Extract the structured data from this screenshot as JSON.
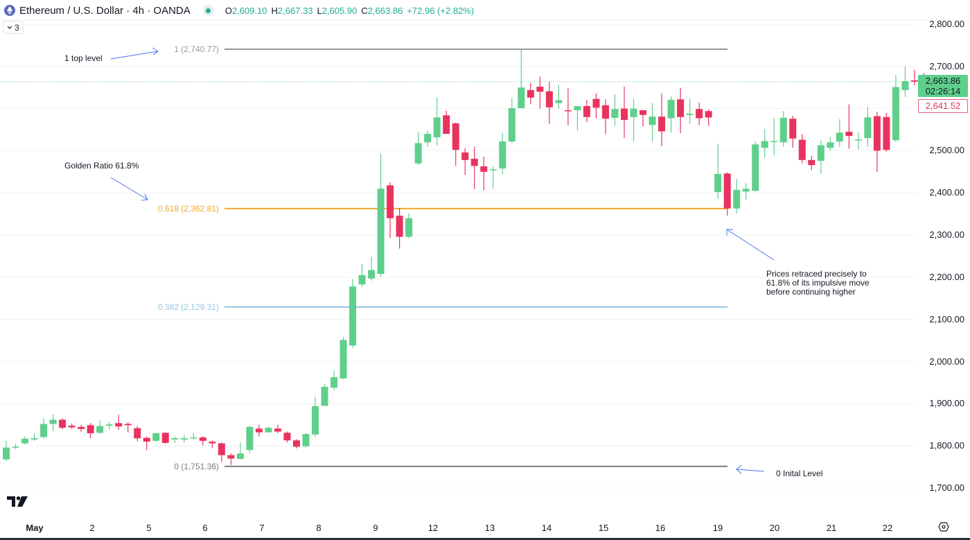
{
  "header": {
    "symbol_title": "Ethereum / U.S. Dollar · 4h · OANDA",
    "symbol_icon": "ethereum-icon",
    "ohlc": {
      "open_label": "O",
      "open": "2,609.10",
      "high_label": "H",
      "high": "2,667.33",
      "low_label": "L",
      "low": "2,605.90",
      "close_label": "C",
      "close": "2,663.86",
      "change": "+72.96 (+2.82%)"
    },
    "indicators_toggle": {
      "icon": "chevron-down-icon",
      "count": "3"
    }
  },
  "price_axis": {
    "labels": [
      "2,800.00",
      "2,700.00",
      "2,600.00",
      "2,500.00",
      "2,400.00",
      "2,300.00",
      "2,200.00",
      "2,100.00",
      "2,000.00",
      "1,900.00",
      "1,800.00",
      "1,700.00"
    ],
    "last_price": "2,663.86",
    "countdown": "02:26:14",
    "prev_close": "2,641.52"
  },
  "time_axis": {
    "labels": [
      "May",
      "2",
      "5",
      "6",
      "7",
      "8",
      "9",
      "12",
      "13",
      "14",
      "15",
      "16",
      "19",
      "20",
      "21",
      "22"
    ]
  },
  "fibonacci": [
    {
      "label": "1 (2,740.77)",
      "level": 1,
      "price": 2740.77,
      "color": "#9598a1"
    },
    {
      "label": "0.618 (2,362.81)",
      "level": 0.618,
      "price": 2362.81,
      "color": "#f0a92e"
    },
    {
      "label": "0.382 (2,129.31)",
      "level": 0.382,
      "price": 2129.31,
      "color": "#93c5e0"
    },
    {
      "label": "0 (1,751.36)",
      "level": 0,
      "price": 1751.36,
      "color": "#787b86"
    }
  ],
  "annotations": {
    "top_level": "1 top level",
    "golden_ratio": "Golden Ratio 61.8%",
    "retrace_note": [
      "Prices retraced precisely to",
      "61.8% of its impulsive move",
      "before continuing higher"
    ],
    "initial_level": "0 Inital Level"
  },
  "colors": {
    "up": "#5fcf8c",
    "down": "#e8335e",
    "annotation_arrow": "#4a72e8",
    "grid": "#f0f1f3"
  },
  "chart_data": {
    "type": "candlestick",
    "title": "Ethereum / U.S. Dollar · 4h · OANDA",
    "xlabel": "",
    "ylabel": "",
    "ylim": [
      1650,
      2830
    ],
    "grid": true,
    "x_ticks": [
      "May",
      "2",
      "5",
      "6",
      "7",
      "8",
      "9",
      "12",
      "13",
      "14",
      "15",
      "16",
      "19",
      "20",
      "21",
      "22"
    ],
    "y_ticks": [
      1700,
      1800,
      1900,
      2000,
      2100,
      2200,
      2300,
      2400,
      2500,
      2600,
      2700,
      2800
    ],
    "last_price": 2663.86,
    "fib_levels": [
      {
        "level": 1,
        "price": 2740.77
      },
      {
        "level": 0.618,
        "price": 2362.81
      },
      {
        "level": 0.382,
        "price": 2129.31
      },
      {
        "level": 0,
        "price": 1751.36
      }
    ],
    "candles": [
      [
        1768,
        1796,
        1764,
        1812
      ],
      [
        1796,
        1798,
        1792,
        1805
      ],
      [
        1806,
        1817,
        1803,
        1822
      ],
      [
        1815,
        1818,
        1812,
        1830
      ],
      [
        1821,
        1852,
        1818,
        1865
      ],
      [
        1852,
        1862,
        1835,
        1875
      ],
      [
        1862,
        1843,
        1840,
        1865
      ],
      [
        1848,
        1844,
        1840,
        1853
      ],
      [
        1845,
        1840,
        1833,
        1850
      ],
      [
        1849,
        1830,
        1818,
        1854
      ],
      [
        1831,
        1847,
        1829,
        1860
      ],
      [
        1848,
        1851,
        1839,
        1857
      ],
      [
        1854,
        1846,
        1838,
        1874
      ],
      [
        1852,
        1849,
        1832,
        1856
      ],
      [
        1842,
        1818,
        1811,
        1847
      ],
      [
        1819,
        1810,
        1790,
        1822
      ],
      [
        1812,
        1830,
        1810,
        1831
      ],
      [
        1831,
        1807,
        1805,
        1832
      ],
      [
        1815,
        1818,
        1807,
        1822
      ],
      [
        1815,
        1818,
        1808,
        1826
      ],
      [
        1819,
        1820,
        1815,
        1831
      ],
      [
        1820,
        1812,
        1801,
        1823
      ],
      [
        1810,
        1806,
        1795,
        1813
      ],
      [
        1806,
        1778,
        1762,
        1808
      ],
      [
        1778,
        1770,
        1755,
        1782
      ],
      [
        1769,
        1782,
        1768,
        1808
      ],
      [
        1790,
        1845,
        1783,
        1848
      ],
      [
        1841,
        1832,
        1822,
        1850
      ],
      [
        1832,
        1843,
        1832,
        1846
      ],
      [
        1841,
        1834,
        1830,
        1850
      ],
      [
        1831,
        1813,
        1808,
        1834
      ],
      [
        1813,
        1798,
        1794,
        1816
      ],
      [
        1799,
        1828,
        1796,
        1830
      ],
      [
        1827,
        1894,
        1822,
        1916
      ],
      [
        1895,
        1940,
        1895,
        1947
      ],
      [
        1938,
        1963,
        1932,
        1978
      ],
      [
        1960,
        2051,
        1958,
        2058
      ],
      [
        2038,
        2178,
        2032,
        2196
      ],
      [
        2183,
        2205,
        2177,
        2231
      ],
      [
        2197,
        2217,
        2192,
        2248
      ],
      [
        2208,
        2410,
        2201,
        2493
      ],
      [
        2418,
        2340,
        2293,
        2425
      ],
      [
        2346,
        2296,
        2268,
        2364
      ],
      [
        2296,
        2340,
        2293,
        2352
      ],
      [
        2470,
        2518,
        2466,
        2545
      ],
      [
        2520,
        2540,
        2510,
        2548
      ],
      [
        2532,
        2579,
        2513,
        2627
      ],
      [
        2584,
        2540,
        2549,
        2595
      ],
      [
        2565,
        2502,
        2464,
        2567
      ],
      [
        2496,
        2478,
        2443,
        2506
      ],
      [
        2481,
        2464,
        2409,
        2510
      ],
      [
        2463,
        2450,
        2406,
        2486
      ],
      [
        2454,
        2456,
        2410,
        2462
      ],
      [
        2458,
        2522,
        2444,
        2543
      ],
      [
        2522,
        2601,
        2518,
        2626
      ],
      [
        2601,
        2650,
        2605,
        2742
      ],
      [
        2644,
        2626,
        2610,
        2661
      ],
      [
        2652,
        2640,
        2600,
        2676
      ],
      [
        2641,
        2603,
        2564,
        2664
      ],
      [
        2613,
        2620,
        2600,
        2656
      ],
      [
        2596,
        2595,
        2560,
        2648
      ],
      [
        2596,
        2606,
        2548,
        2600
      ],
      [
        2606,
        2580,
        2568,
        2620
      ],
      [
        2623,
        2602,
        2577,
        2636
      ],
      [
        2608,
        2576,
        2540,
        2622
      ],
      [
        2578,
        2599,
        2559,
        2634
      ],
      [
        2600,
        2573,
        2530,
        2652
      ],
      [
        2580,
        2600,
        2521,
        2624
      ],
      [
        2596,
        2585,
        2558,
        2596
      ],
      [
        2561,
        2581,
        2521,
        2613
      ],
      [
        2581,
        2546,
        2511,
        2636
      ],
      [
        2577,
        2621,
        2543,
        2629
      ],
      [
        2622,
        2580,
        2542,
        2649
      ],
      [
        2585,
        2588,
        2564,
        2623
      ],
      [
        2599,
        2577,
        2561,
        2614
      ],
      [
        2594,
        2579,
        2559,
        2598
      ],
      [
        2402,
        2445,
        2386,
        2517
      ],
      [
        2446,
        2363,
        2346,
        2449
      ],
      [
        2363,
        2407,
        2352,
        2433
      ],
      [
        2403,
        2410,
        2384,
        2423
      ],
      [
        2405,
        2515,
        2403,
        2522
      ],
      [
        2507,
        2523,
        2483,
        2552
      ],
      [
        2523,
        2523,
        2489,
        2577
      ],
      [
        2520,
        2578,
        2510,
        2594
      ],
      [
        2576,
        2529,
        2507,
        2583
      ],
      [
        2526,
        2478,
        2470,
        2539
      ],
      [
        2478,
        2466,
        2454,
        2488
      ],
      [
        2476,
        2513,
        2445,
        2525
      ],
      [
        2507,
        2520,
        2500,
        2533
      ],
      [
        2522,
        2543,
        2510,
        2575
      ],
      [
        2545,
        2535,
        2505,
        2610
      ],
      [
        2527,
        2527,
        2503,
        2544
      ],
      [
        2530,
        2579,
        2510,
        2604
      ],
      [
        2582,
        2500,
        2450,
        2592
      ],
      [
        2580,
        2502,
        2498,
        2589
      ],
      [
        2525,
        2651,
        2521,
        2680
      ],
      [
        2644,
        2665,
        2628,
        2700
      ],
      [
        2667,
        2664,
        2655,
        2692
      ],
      [
        2660,
        2649,
        2633,
        2684
      ],
      [
        2644,
        2640,
        2634,
        2646
      ]
    ]
  }
}
